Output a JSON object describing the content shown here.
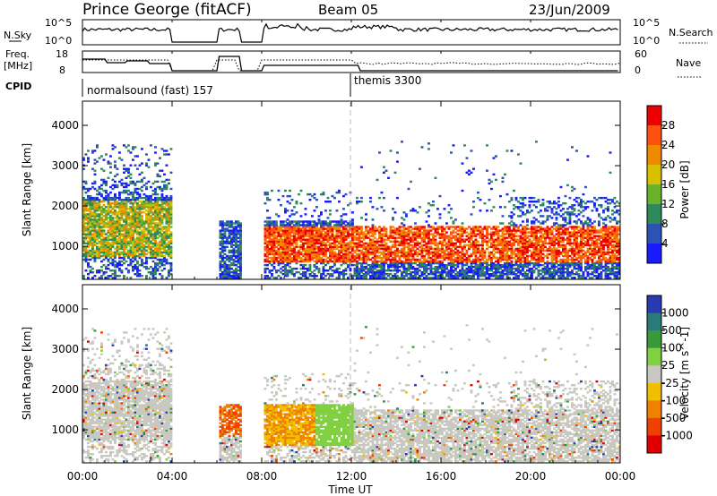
{
  "header": {
    "title": "Prince George (fitACF)",
    "beam": "Beam 05",
    "date": "23/Jun/2009"
  },
  "top_panels": {
    "nsky_label": "N.Sky",
    "nsearch_label": "N.Search",
    "nsky_ticks": [
      "10^5",
      "10^0"
    ],
    "nsearch_ticks": [
      "10^5",
      "10^0"
    ],
    "freq_label_1": "Freq.",
    "freq_label_2": "[MHz]",
    "freq_ticks": [
      "18",
      "8"
    ],
    "nave_label": "Nave",
    "nave_ticks": [
      "60",
      "0"
    ],
    "cpid_label": "CPID",
    "cpid_segments": [
      {
        "label": "normalsound (fast) 157",
        "start_hour": 0
      },
      {
        "label": "themis 3300",
        "start_hour": 12
      }
    ]
  },
  "chart_data": [
    {
      "type": "heatmap",
      "name": "power",
      "ylabel": "Slant Range [km]",
      "ylim": [
        180,
        4600
      ],
      "yticks": [
        "1000",
        "2000",
        "3000",
        "4000"
      ],
      "xlim": [
        0,
        24
      ],
      "colorbar_label": "Power [dB]",
      "colorbar_ticks": [
        "4",
        "8",
        "12",
        "16",
        "20",
        "24",
        "28"
      ],
      "colorbar_colors": [
        "#1a1aff",
        "#2c52b6",
        "#2e8a5a",
        "#6ab22c",
        "#d8c000",
        "#f08a00",
        "#ff5010",
        "#ee0000"
      ],
      "data_gaps_hours": [
        [
          4.0,
          6.0
        ],
        [
          7.0,
          8.0
        ]
      ]
    },
    {
      "type": "heatmap",
      "name": "velocity",
      "ylabel": "Slant Range [km]",
      "ylim": [
        180,
        4600
      ],
      "yticks": [
        "1000",
        "2000",
        "3000",
        "4000"
      ],
      "xlim": [
        0,
        24
      ],
      "colorbar_label": "Velocity [m s^-1]",
      "colorbar_ticks": [
        "1000",
        "500",
        "100",
        "25",
        "-25",
        "-100",
        "-500",
        "-1000"
      ],
      "colorbar_colors": [
        "#2a3ab0",
        "#2a7a7a",
        "#3a9a3a",
        "#80d040",
        "#c8c8c0",
        "#f0c000",
        "#f08000",
        "#f04000",
        "#e00000"
      ],
      "data_gaps_hours": [
        [
          4.0,
          6.0
        ],
        [
          7.0,
          8.0
        ]
      ]
    }
  ],
  "xaxis": {
    "label": "Time UT",
    "ticks": [
      "00:00",
      "04:00",
      "08:00",
      "12:00",
      "16:00",
      "20:00",
      "00:00"
    ]
  }
}
